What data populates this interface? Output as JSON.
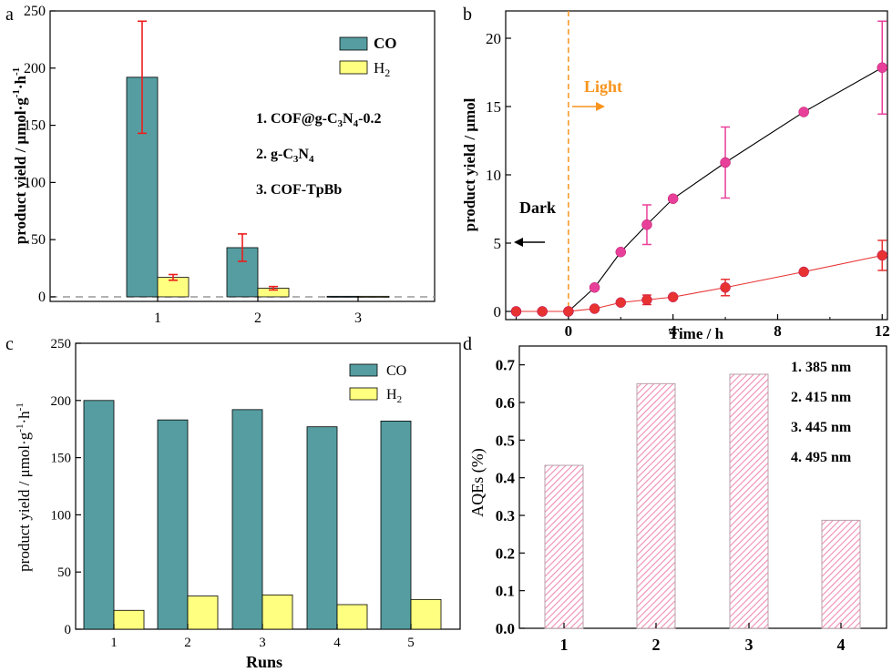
{
  "colors": {
    "co": "#559da0",
    "h2": "#ffff80",
    "err": "#ee1c1c",
    "magenta": "#e8409a",
    "red": "#e83232",
    "orange": "#f7941d",
    "pink_hatch": "#f08cb4",
    "dash": "#999999"
  },
  "chart_data": [
    {
      "panel": "a",
      "type": "bar",
      "categories": [
        "1",
        "2",
        "3"
      ],
      "series": [
        {
          "name": "CO",
          "values": [
            192,
            43,
            0.5
          ],
          "errors": [
            49,
            12,
            0
          ]
        },
        {
          "name": "H2",
          "values": [
            17,
            7.5,
            0.5
          ],
          "errors": [
            2.5,
            1.5,
            0
          ]
        }
      ],
      "xlabel": "",
      "ylabel": "product yield / μmol·g⁻¹·h⁻¹",
      "ylim": [
        -4,
        250
      ],
      "yticks": [
        0,
        50,
        100,
        150,
        200,
        250
      ],
      "legend": "top-right",
      "baseline_dashed": 0,
      "annotations": [
        "1. COF@g-C₃N₄-0.2",
        "2. g-C₃N₄",
        "3. COF-TpBb"
      ]
    },
    {
      "panel": "b",
      "type": "line",
      "xlabel": "Time / h",
      "ylabel": "product yield / μmol",
      "xlim": [
        -2.4,
        12.2
      ],
      "ylim": [
        -0.6,
        22
      ],
      "xticks": [
        0,
        4,
        8,
        12
      ],
      "yticks": [
        0,
        5,
        10,
        15,
        20
      ],
      "series": [
        {
          "name": "",
          "color_key": "magenta",
          "x": [
            -2,
            -1,
            0,
            1,
            2,
            3,
            4,
            6,
            9,
            12
          ],
          "y": [
            0,
            0,
            0,
            1.75,
            4.35,
            6.35,
            8.25,
            10.9,
            14.6,
            17.85
          ],
          "err": [
            0,
            0,
            0,
            0,
            0,
            1.45,
            0,
            2.6,
            0,
            3.4
          ]
        },
        {
          "name": "",
          "color_key": "red",
          "x": [
            -2,
            -1,
            0,
            1,
            2,
            3,
            4,
            6,
            9,
            12
          ],
          "y": [
            0,
            0,
            0,
            0.2,
            0.65,
            0.85,
            1.05,
            1.75,
            2.9,
            4.1
          ],
          "err": [
            0,
            0,
            0,
            0,
            0,
            0.35,
            0,
            0.6,
            0,
            1.1
          ]
        }
      ],
      "annotations": [
        "Light",
        "Dark"
      ],
      "divider_x": 0
    },
    {
      "panel": "c",
      "type": "bar",
      "categories": [
        "1",
        "2",
        "3",
        "4",
        "5"
      ],
      "series": [
        {
          "name": "CO",
          "values": [
            200,
            183,
            192,
            177,
            182
          ]
        },
        {
          "name": "H2",
          "values": [
            16.5,
            29,
            30,
            21.5,
            26
          ]
        }
      ],
      "xlabel": "Runs",
      "ylabel": "product yield / μmol·g⁻¹·h⁻¹",
      "ylim": [
        0,
        250
      ],
      "yticks": [
        0,
        50,
        100,
        150,
        200,
        250
      ],
      "legend": "top-right"
    },
    {
      "panel": "d",
      "type": "bar",
      "categories": [
        "1",
        "2",
        "3",
        "4"
      ],
      "values": [
        0.433,
        0.65,
        0.675,
        0.287
      ],
      "xlabel": "",
      "ylabel": "AQEs (%)",
      "ylim": [
        0,
        0.75
      ],
      "yticks": [
        "0.0",
        "0.1",
        "0.2",
        "0.3",
        "0.4",
        "0.5",
        "0.6",
        "0.7"
      ],
      "annotations": [
        "1. 385 nm",
        "2. 415 nm",
        "3. 445 nm",
        "4. 495 nm"
      ],
      "fill": "hatched-pink"
    }
  ],
  "labels": {
    "panel_a": "a",
    "panel_b": "b",
    "panel_c": "c",
    "panel_d": "d",
    "legend_co": "CO",
    "legend_h2_main": "H",
    "legend_h2_sub": "2",
    "a_ann1_pre": "1. COF@g-C",
    "a_ann1_s1": "3",
    "a_ann1_mid": "N",
    "a_ann1_s2": "4",
    "a_ann1_post": "-0.2",
    "a_ann2_pre": "2. g-C",
    "a_ann2_s1": "3",
    "a_ann2_mid": "N",
    "a_ann2_s2": "4",
    "a_ann3": "3. COF-TpBb",
    "ylabel_yield_main": "product yield / μmol·g",
    "ylabel_yield_sup1": "-1",
    "ylabel_yield_mid": "·h",
    "ylabel_yield_sup2": "-1",
    "b_ylabel": "product yield / μmol",
    "b_xlabel": "Time / h",
    "b_light": "Light",
    "b_dark": "Dark",
    "c_xlabel": "Runs",
    "d_ylabel": "AQEs (%)",
    "d_ann": [
      "1. 385 nm",
      "2. 415 nm",
      "3. 445 nm",
      "4. 495 nm"
    ]
  }
}
